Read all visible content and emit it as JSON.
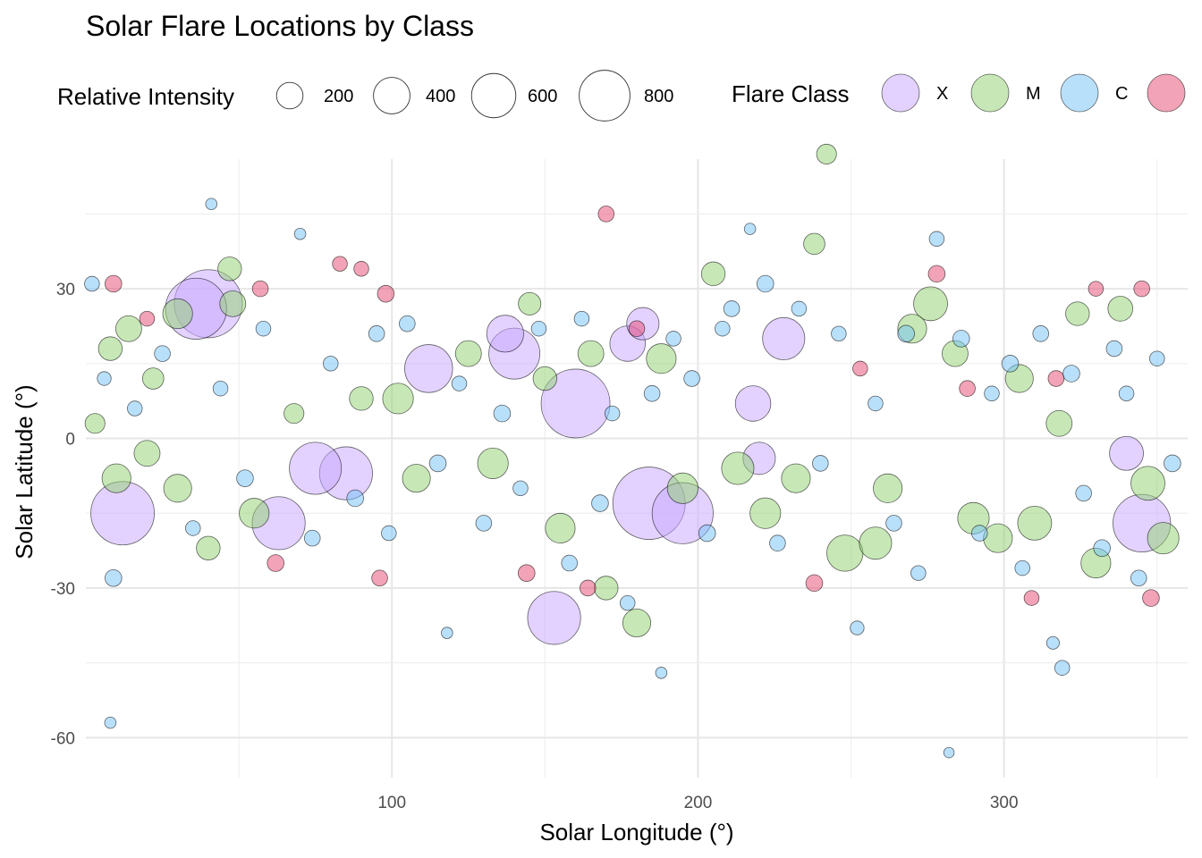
{
  "chart_data": {
    "type": "scatter",
    "title": "Solar Flare Locations by Class",
    "xlabel": "Solar Longitude (°)",
    "ylabel": "Solar Latitude (°)",
    "xlim": [
      0,
      360
    ],
    "ylim": [
      -68,
      56
    ],
    "x_ticks": [
      100,
      200,
      300
    ],
    "y_ticks": [
      -60,
      -30,
      0,
      30
    ],
    "grid": true,
    "legend_placement": "top",
    "size_legend": {
      "title": "Relative Intensity",
      "entries": [
        {
          "label": "200",
          "value": 200
        },
        {
          "label": "400",
          "value": 400
        },
        {
          "label": "600",
          "value": 600
        },
        {
          "label": "800",
          "value": 800
        }
      ]
    },
    "color_legend": {
      "title": "Flare Class",
      "entries": [
        {
          "label": "X",
          "color": "#c7a6ff"
        },
        {
          "label": "M",
          "color": "#8fd16d"
        },
        {
          "label": "C",
          "color": "#74c1f7"
        },
        {
          "label": "",
          "color": "#e8476f"
        }
      ]
    },
    "series": [
      {
        "name": "X",
        "color": "#c7a6ff",
        "points": [
          {
            "x": 40,
            "y": 27,
            "size": 880
          },
          {
            "x": 36,
            "y": 26,
            "size": 700
          },
          {
            "x": 12,
            "y": -15,
            "size": 760
          },
          {
            "x": 63,
            "y": -17,
            "size": 520
          },
          {
            "x": 75,
            "y": -6,
            "size": 500
          },
          {
            "x": 85,
            "y": -7,
            "size": 520
          },
          {
            "x": 112,
            "y": 14,
            "size": 420
          },
          {
            "x": 140,
            "y": 17,
            "size": 480
          },
          {
            "x": 137,
            "y": 21,
            "size": 240
          },
          {
            "x": 160,
            "y": 7,
            "size": 900
          },
          {
            "x": 182,
            "y": 23,
            "size": 180
          },
          {
            "x": 177,
            "y": 19,
            "size": 220
          },
          {
            "x": 184,
            "y": -13,
            "size": 1000
          },
          {
            "x": 195,
            "y": -15,
            "size": 700
          },
          {
            "x": 218,
            "y": 7,
            "size": 220
          },
          {
            "x": 220,
            "y": -4,
            "size": 180
          },
          {
            "x": 228,
            "y": 20,
            "size": 320
          },
          {
            "x": 153,
            "y": -36,
            "size": 520
          },
          {
            "x": 340,
            "y": -3,
            "size": 200
          },
          {
            "x": 345,
            "y": -17,
            "size": 620
          }
        ]
      },
      {
        "name": "M",
        "color": "#8fd16d",
        "points": [
          {
            "x": 3,
            "y": 3,
            "size": 60
          },
          {
            "x": 8,
            "y": 18,
            "size": 90
          },
          {
            "x": 14,
            "y": 22,
            "size": 110
          },
          {
            "x": 22,
            "y": 12,
            "size": 70
          },
          {
            "x": 30,
            "y": 25,
            "size": 150
          },
          {
            "x": 47,
            "y": 34,
            "size": 90
          },
          {
            "x": 48,
            "y": 27,
            "size": 110
          },
          {
            "x": 10,
            "y": -8,
            "size": 140
          },
          {
            "x": 20,
            "y": -3,
            "size": 110
          },
          {
            "x": 30,
            "y": -10,
            "size": 130
          },
          {
            "x": 40,
            "y": -22,
            "size": 90
          },
          {
            "x": 55,
            "y": -15,
            "size": 150
          },
          {
            "x": 68,
            "y": 5,
            "size": 60
          },
          {
            "x": 90,
            "y": 8,
            "size": 90
          },
          {
            "x": 102,
            "y": 8,
            "size": 160
          },
          {
            "x": 108,
            "y": -8,
            "size": 130
          },
          {
            "x": 125,
            "y": 17,
            "size": 110
          },
          {
            "x": 133,
            "y": -5,
            "size": 160
          },
          {
            "x": 145,
            "y": 27,
            "size": 80
          },
          {
            "x": 150,
            "y": 12,
            "size": 90
          },
          {
            "x": 155,
            "y": -18,
            "size": 150
          },
          {
            "x": 165,
            "y": 17,
            "size": 110
          },
          {
            "x": 170,
            "y": -30,
            "size": 90
          },
          {
            "x": 180,
            "y": -37,
            "size": 130
          },
          {
            "x": 188,
            "y": 16,
            "size": 150
          },
          {
            "x": 195,
            "y": -10,
            "size": 160
          },
          {
            "x": 205,
            "y": 33,
            "size": 90
          },
          {
            "x": 213,
            "y": -6,
            "size": 180
          },
          {
            "x": 222,
            "y": -15,
            "size": 160
          },
          {
            "x": 232,
            "y": -8,
            "size": 140
          },
          {
            "x": 238,
            "y": 39,
            "size": 70
          },
          {
            "x": 242,
            "y": 57,
            "size": 60
          },
          {
            "x": 248,
            "y": -23,
            "size": 230
          },
          {
            "x": 258,
            "y": -21,
            "size": 180
          },
          {
            "x": 262,
            "y": -10,
            "size": 140
          },
          {
            "x": 270,
            "y": 22,
            "size": 140
          },
          {
            "x": 276,
            "y": 27,
            "size": 200
          },
          {
            "x": 284,
            "y": 17,
            "size": 110
          },
          {
            "x": 290,
            "y": -16,
            "size": 170
          },
          {
            "x": 298,
            "y": -20,
            "size": 140
          },
          {
            "x": 305,
            "y": 12,
            "size": 130
          },
          {
            "x": 310,
            "y": -17,
            "size": 200
          },
          {
            "x": 318,
            "y": 3,
            "size": 110
          },
          {
            "x": 324,
            "y": 25,
            "size": 90
          },
          {
            "x": 330,
            "y": -25,
            "size": 150
          },
          {
            "x": 338,
            "y": 26,
            "size": 100
          },
          {
            "x": 347,
            "y": -9,
            "size": 200
          },
          {
            "x": 352,
            "y": -20,
            "size": 170
          }
        ]
      },
      {
        "name": "C",
        "color": "#74c1f7",
        "points": [
          {
            "x": 2,
            "y": 31,
            "size": 30
          },
          {
            "x": 6,
            "y": 12,
            "size": 25
          },
          {
            "x": 9,
            "y": -28,
            "size": 40
          },
          {
            "x": 16,
            "y": 6,
            "size": 30
          },
          {
            "x": 25,
            "y": 17,
            "size": 35
          },
          {
            "x": 35,
            "y": -18,
            "size": 30
          },
          {
            "x": 41,
            "y": 47,
            "size": 15
          },
          {
            "x": 44,
            "y": 10,
            "size": 30
          },
          {
            "x": 52,
            "y": -8,
            "size": 40
          },
          {
            "x": 58,
            "y": 22,
            "size": 30
          },
          {
            "x": 70,
            "y": 41,
            "size": 15
          },
          {
            "x": 74,
            "y": -20,
            "size": 35
          },
          {
            "x": 80,
            "y": 15,
            "size": 30
          },
          {
            "x": 88,
            "y": -12,
            "size": 40
          },
          {
            "x": 95,
            "y": 21,
            "size": 35
          },
          {
            "x": 99,
            "y": -19,
            "size": 30
          },
          {
            "x": 105,
            "y": 23,
            "size": 35
          },
          {
            "x": 115,
            "y": -5,
            "size": 40
          },
          {
            "x": 118,
            "y": -39,
            "size": 15
          },
          {
            "x": 122,
            "y": 11,
            "size": 30
          },
          {
            "x": 130,
            "y": -17,
            "size": 35
          },
          {
            "x": 136,
            "y": 5,
            "size": 40
          },
          {
            "x": 142,
            "y": -10,
            "size": 30
          },
          {
            "x": 148,
            "y": 22,
            "size": 30
          },
          {
            "x": 158,
            "y": -25,
            "size": 35
          },
          {
            "x": 162,
            "y": 24,
            "size": 30
          },
          {
            "x": 168,
            "y": -13,
            "size": 40
          },
          {
            "x": 172,
            "y": 5,
            "size": 30
          },
          {
            "x": 177,
            "y": -33,
            "size": 30
          },
          {
            "x": 185,
            "y": 9,
            "size": 35
          },
          {
            "x": 188,
            "y": -47,
            "size": 15
          },
          {
            "x": 192,
            "y": 20,
            "size": 30
          },
          {
            "x": 198,
            "y": 12,
            "size": 35
          },
          {
            "x": 203,
            "y": -19,
            "size": 40
          },
          {
            "x": 208,
            "y": 22,
            "size": 30
          },
          {
            "x": 211,
            "y": 26,
            "size": 35
          },
          {
            "x": 217,
            "y": 42,
            "size": 15
          },
          {
            "x": 222,
            "y": 31,
            "size": 40
          },
          {
            "x": 226,
            "y": -21,
            "size": 35
          },
          {
            "x": 233,
            "y": 26,
            "size": 30
          },
          {
            "x": 240,
            "y": -5,
            "size": 35
          },
          {
            "x": 246,
            "y": 21,
            "size": 30
          },
          {
            "x": 252,
            "y": -38,
            "size": 25
          },
          {
            "x": 258,
            "y": 7,
            "size": 30
          },
          {
            "x": 264,
            "y": -17,
            "size": 35
          },
          {
            "x": 268,
            "y": 21,
            "size": 40
          },
          {
            "x": 272,
            "y": -27,
            "size": 30
          },
          {
            "x": 278,
            "y": 40,
            "size": 30
          },
          {
            "x": 282,
            "y": -63,
            "size": 12
          },
          {
            "x": 286,
            "y": 20,
            "size": 40
          },
          {
            "x": 292,
            "y": -19,
            "size": 35
          },
          {
            "x": 296,
            "y": 9,
            "size": 30
          },
          {
            "x": 302,
            "y": 15,
            "size": 40
          },
          {
            "x": 306,
            "y": -26,
            "size": 30
          },
          {
            "x": 312,
            "y": 21,
            "size": 35
          },
          {
            "x": 316,
            "y": -41,
            "size": 20
          },
          {
            "x": 319,
            "y": -46,
            "size": 30
          },
          {
            "x": 322,
            "y": 13,
            "size": 40
          },
          {
            "x": 326,
            "y": -11,
            "size": 35
          },
          {
            "x": 332,
            "y": -22,
            "size": 40
          },
          {
            "x": 336,
            "y": 18,
            "size": 35
          },
          {
            "x": 340,
            "y": 9,
            "size": 30
          },
          {
            "x": 344,
            "y": -28,
            "size": 35
          },
          {
            "x": 350,
            "y": 16,
            "size": 30
          },
          {
            "x": 355,
            "y": -5,
            "size": 40
          },
          {
            "x": 8,
            "y": -57,
            "size": 15
          }
        ]
      },
      {
        "name": "",
        "color": "#e8476f",
        "points": [
          {
            "x": 9,
            "y": 31,
            "size": 40
          },
          {
            "x": 20,
            "y": 24,
            "size": 30
          },
          {
            "x": 57,
            "y": 30,
            "size": 35
          },
          {
            "x": 83,
            "y": 35,
            "size": 30
          },
          {
            "x": 90,
            "y": 34,
            "size": 30
          },
          {
            "x": 98,
            "y": 29,
            "size": 40
          },
          {
            "x": 180,
            "y": 22,
            "size": 35
          },
          {
            "x": 170,
            "y": 45,
            "size": 35
          },
          {
            "x": 164,
            "y": -30,
            "size": 35
          },
          {
            "x": 144,
            "y": -27,
            "size": 40
          },
          {
            "x": 253,
            "y": 14,
            "size": 30
          },
          {
            "x": 278,
            "y": 33,
            "size": 40
          },
          {
            "x": 288,
            "y": 10,
            "size": 35
          },
          {
            "x": 317,
            "y": 12,
            "size": 35
          },
          {
            "x": 330,
            "y": 30,
            "size": 30
          },
          {
            "x": 345,
            "y": 30,
            "size": 35
          },
          {
            "x": 348,
            "y": -32,
            "size": 40
          },
          {
            "x": 62,
            "y": -25,
            "size": 40
          },
          {
            "x": 96,
            "y": -28,
            "size": 35
          },
          {
            "x": 309,
            "y": -32,
            "size": 30
          },
          {
            "x": 238,
            "y": -29,
            "size": 40
          }
        ]
      }
    ]
  }
}
